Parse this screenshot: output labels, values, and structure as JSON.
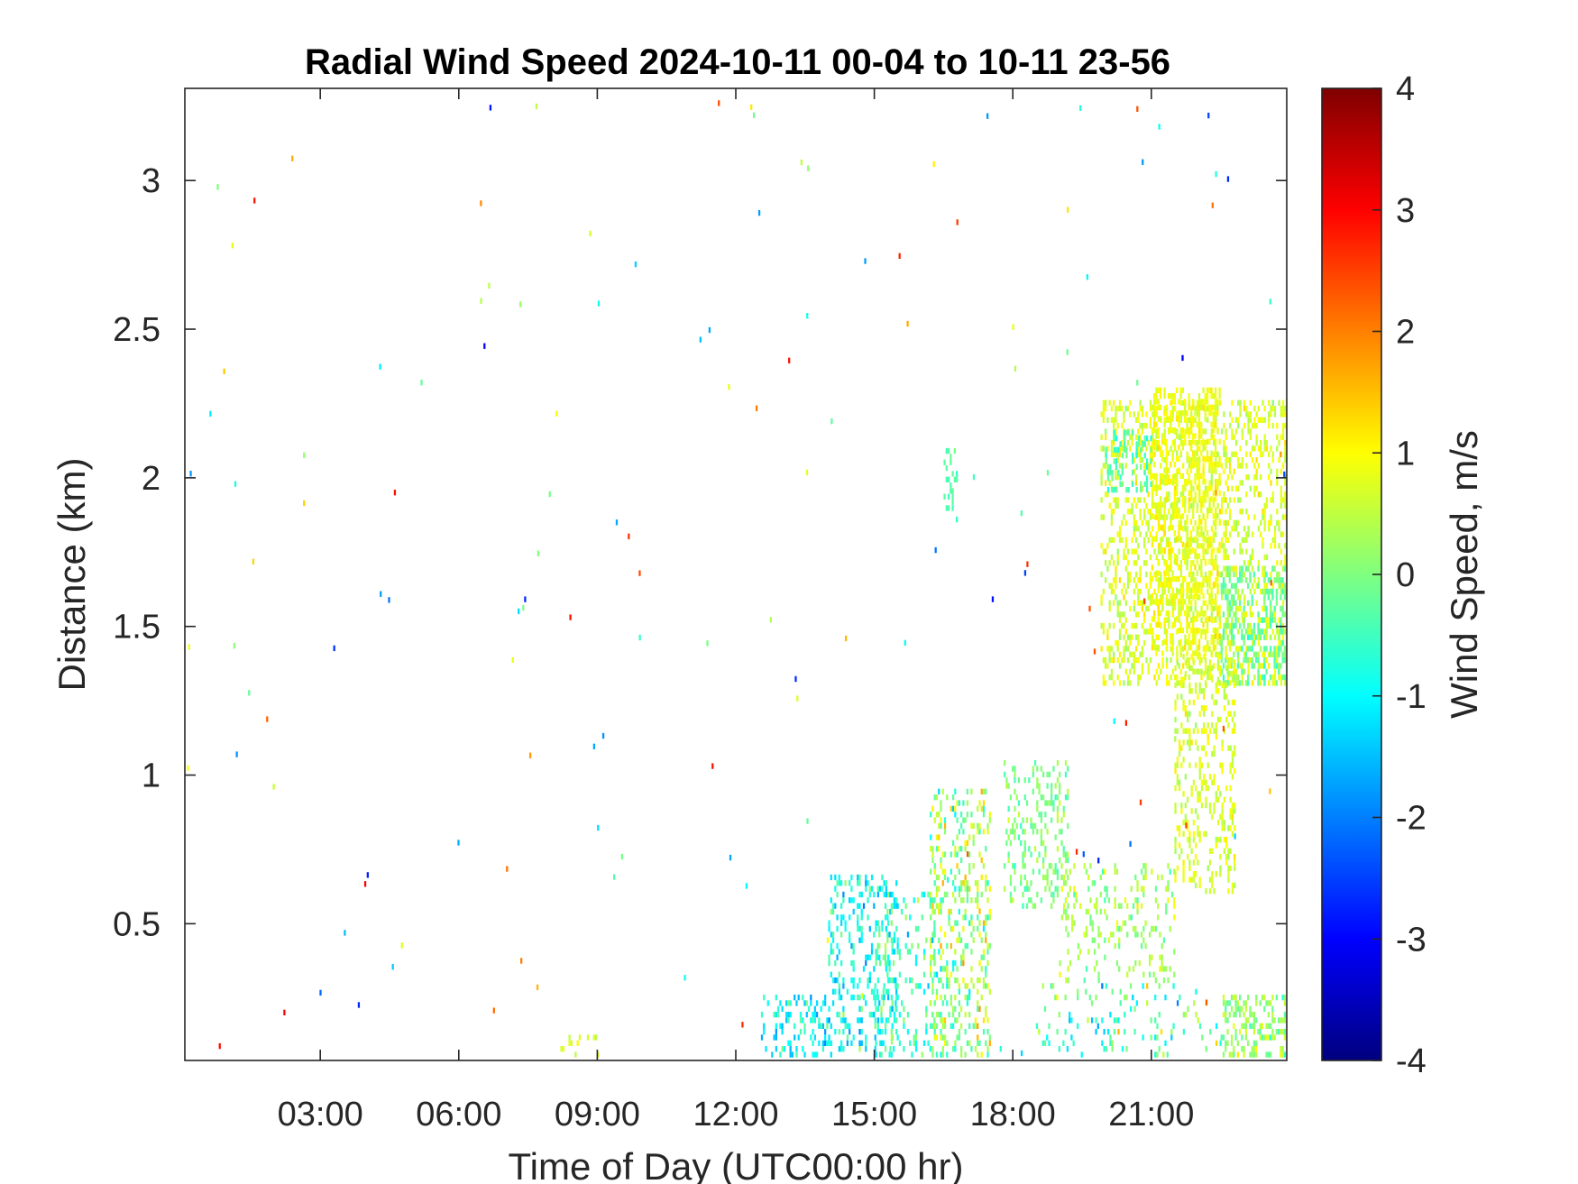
{
  "chart_data": {
    "type": "heatmap",
    "title": "Radial Wind Speed 2024-10-11 00-04 to 10-11 23-56",
    "xlabel": "Time of Day (UTC00:00 hr)",
    "ylabel": "Distance (km)",
    "x_unit": "hours",
    "xlim": [
      0.067,
      23.933
    ],
    "ylim": [
      0.04,
      3.31
    ],
    "xticks": [
      3,
      6,
      9,
      12,
      15,
      18,
      21
    ],
    "xtick_labels": [
      "03:00",
      "06:00",
      "09:00",
      "12:00",
      "15:00",
      "18:00",
      "21:00"
    ],
    "yticks": [
      0.5,
      1,
      1.5,
      2,
      2.5,
      3
    ],
    "ytick_labels": [
      "0.5",
      "1",
      "1.5",
      "2",
      "2.5",
      "3"
    ],
    "colorbar": {
      "label": "Wind Speed, m/s",
      "colormap": "jet",
      "clim": [
        -4,
        4
      ],
      "ticks": [
        -4,
        -3,
        -2,
        -1,
        0,
        1,
        2,
        3,
        4
      ],
      "tick_labels": [
        "-4",
        "-3",
        "-2",
        "-1",
        "0",
        "1",
        "2",
        "3",
        "4"
      ]
    },
    "regions": [
      {
        "x": [
          19.9,
          23.9
        ],
        "y": [
          1.3,
          2.25
        ],
        "mean": 0.7,
        "spread": 0.4,
        "density": 0.55
      },
      {
        "x": [
          21.0,
          22.5
        ],
        "y": [
          1.4,
          2.3
        ],
        "mean": 0.9,
        "spread": 0.3,
        "density": 0.7
      },
      {
        "x": [
          22.5,
          23.9
        ],
        "y": [
          1.3,
          1.7
        ],
        "mean": -0.2,
        "spread": 0.4,
        "density": 0.6
      },
      {
        "x": [
          21.5,
          22.8
        ],
        "y": [
          0.6,
          1.4
        ],
        "mean": 0.7,
        "spread": 0.4,
        "density": 0.45
      },
      {
        "x": [
          16.2,
          17.5
        ],
        "y": [
          0.05,
          0.95
        ],
        "mean": 0.2,
        "spread": 1.1,
        "density": 0.45
      },
      {
        "x": [
          17.8,
          19.2
        ],
        "y": [
          0.55,
          1.05
        ],
        "mean": 0.0,
        "spread": 0.5,
        "density": 0.4
      },
      {
        "x": [
          19.0,
          21.5
        ],
        "y": [
          0.3,
          0.7
        ],
        "mean": 0.3,
        "spread": 0.7,
        "density": 0.3
      },
      {
        "x": [
          14.0,
          15.5
        ],
        "y": [
          0.05,
          0.65
        ],
        "mean": -0.9,
        "spread": 0.8,
        "density": 0.4
      },
      {
        "x": [
          12.5,
          14.0
        ],
        "y": [
          0.05,
          0.25
        ],
        "mean": -1.0,
        "spread": 0.8,
        "density": 0.45
      },
      {
        "x": [
          15.0,
          16.3
        ],
        "y": [
          0.05,
          0.6
        ],
        "mean": -0.5,
        "spread": 0.9,
        "density": 0.3
      },
      {
        "x": [
          16.5,
          16.8
        ],
        "y": [
          1.85,
          2.1
        ],
        "mean": -0.3,
        "spread": 0.3,
        "density": 0.5
      },
      {
        "x": [
          20.0,
          21.0
        ],
        "y": [
          1.95,
          2.15
        ],
        "mean": -0.4,
        "spread": 0.4,
        "density": 0.5
      },
      {
        "x": [
          22.5,
          23.9
        ],
        "y": [
          0.05,
          0.25
        ],
        "mean": 0.2,
        "spread": 0.7,
        "density": 0.55
      },
      {
        "x": [
          18.5,
          22.5
        ],
        "y": [
          0.05,
          0.3
        ],
        "mean": -0.3,
        "spread": 1.2,
        "density": 0.2
      },
      {
        "x": [
          8.2,
          9.0
        ],
        "y": [
          0.05,
          0.12
        ],
        "mean": 0.6,
        "spread": 0.3,
        "density": 0.4
      }
    ]
  }
}
